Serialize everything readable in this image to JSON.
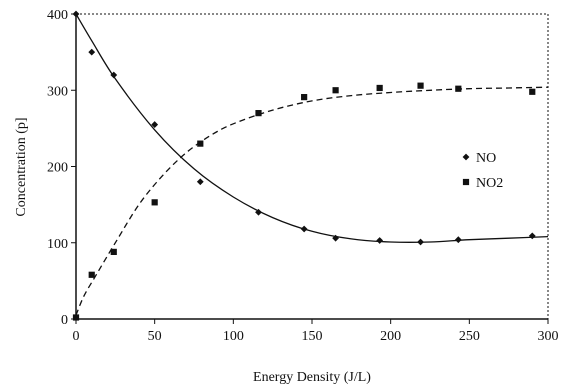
{
  "chart_data": {
    "type": "scatter",
    "title": "",
    "xlabel": "Energy Density (J/L)",
    "ylabel": "Concentration (p]",
    "xlim": [
      0,
      300
    ],
    "ylim": [
      0,
      400
    ],
    "x_ticks": [
      "0",
      "50",
      "100",
      "150",
      "200",
      "250",
      "300"
    ],
    "y_ticks": [
      "0",
      "100",
      "200",
      "300",
      "400"
    ],
    "grid": false,
    "legend_position": "right",
    "series": [
      {
        "name": "NO",
        "marker": "diamond",
        "line_style": "solid",
        "color": "#111111",
        "points": [
          {
            "x": 0,
            "y": 400
          },
          {
            "x": 10,
            "y": 350
          },
          {
            "x": 24,
            "y": 320
          },
          {
            "x": 50,
            "y": 255
          },
          {
            "x": 79,
            "y": 180
          },
          {
            "x": 116,
            "y": 140
          },
          {
            "x": 145,
            "y": 118
          },
          {
            "x": 165,
            "y": 106
          },
          {
            "x": 193,
            "y": 103
          },
          {
            "x": 219,
            "y": 101
          },
          {
            "x": 243,
            "y": 104
          },
          {
            "x": 290,
            "y": 109
          }
        ],
        "fit": [
          {
            "x": 0,
            "y": 400
          },
          {
            "x": 10,
            "y": 365
          },
          {
            "x": 25,
            "y": 315
          },
          {
            "x": 50,
            "y": 248
          },
          {
            "x": 75,
            "y": 197
          },
          {
            "x": 100,
            "y": 160
          },
          {
            "x": 125,
            "y": 133
          },
          {
            "x": 150,
            "y": 115
          },
          {
            "x": 175,
            "y": 105
          },
          {
            "x": 200,
            "y": 101
          },
          {
            "x": 225,
            "y": 101
          },
          {
            "x": 250,
            "y": 104
          },
          {
            "x": 275,
            "y": 106
          },
          {
            "x": 300,
            "y": 108
          }
        ]
      },
      {
        "name": "NO2",
        "marker": "square",
        "line_style": "dashed",
        "color": "#111111",
        "points": [
          {
            "x": 0,
            "y": 2
          },
          {
            "x": 10,
            "y": 58
          },
          {
            "x": 24,
            "y": 88
          },
          {
            "x": 50,
            "y": 153
          },
          {
            "x": 79,
            "y": 230
          },
          {
            "x": 116,
            "y": 270
          },
          {
            "x": 145,
            "y": 291
          },
          {
            "x": 165,
            "y": 300
          },
          {
            "x": 193,
            "y": 303
          },
          {
            "x": 219,
            "y": 306
          },
          {
            "x": 243,
            "y": 302
          },
          {
            "x": 290,
            "y": 298
          }
        ],
        "fit": [
          {
            "x": 0,
            "y": 5
          },
          {
            "x": 5,
            "y": 30
          },
          {
            "x": 12,
            "y": 55
          },
          {
            "x": 25,
            "y": 100
          },
          {
            "x": 40,
            "y": 150
          },
          {
            "x": 55,
            "y": 188
          },
          {
            "x": 70,
            "y": 218
          },
          {
            "x": 85,
            "y": 240
          },
          {
            "x": 100,
            "y": 256
          },
          {
            "x": 125,
            "y": 274
          },
          {
            "x": 150,
            "y": 286
          },
          {
            "x": 175,
            "y": 293
          },
          {
            "x": 200,
            "y": 297
          },
          {
            "x": 225,
            "y": 300
          },
          {
            "x": 250,
            "y": 302
          },
          {
            "x": 275,
            "y": 303
          },
          {
            "x": 300,
            "y": 304
          }
        ]
      }
    ]
  }
}
